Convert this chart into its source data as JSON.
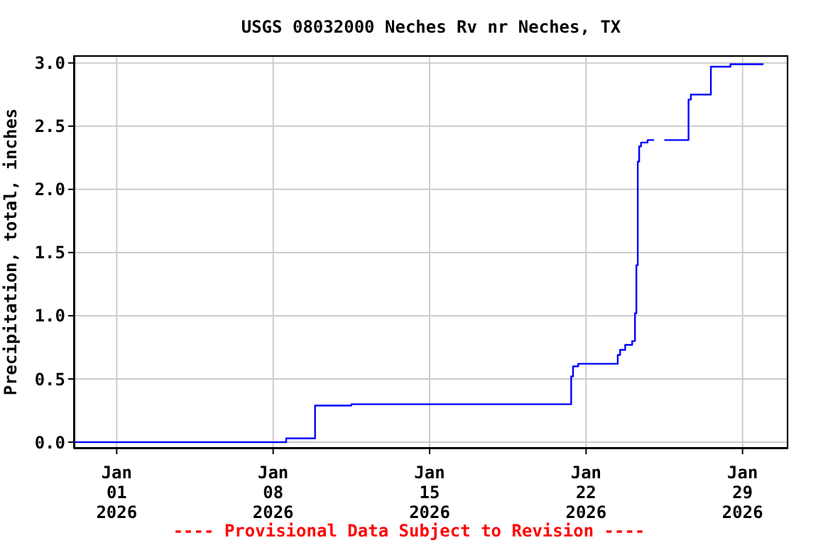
{
  "chart_data": {
    "type": "step",
    "title": "USGS 08032000 Neches Rv nr Neches, TX",
    "ylabel": "Precipitation, total, inches",
    "x": [
      "2025-12-30T02:00",
      "2026-01-08T14:00",
      "2026-01-09T21:00",
      "2026-01-11T12:00",
      "2026-01-21T08:00",
      "2026-01-21T10:00",
      "2026-01-21T15:30",
      "2026-01-23T10:00",
      "2026-01-23T12:30",
      "2026-01-23T18:00",
      "2026-01-24T01:30",
      "2026-01-24T04:30",
      "2026-01-24T06:00",
      "2026-01-24T07:30",
      "2026-01-24T09:00",
      "2026-01-24T11:00",
      "2026-01-24T18:00",
      "2026-01-25T01:00",
      "2026-01-25T02:00",
      "2026-01-25T12:00",
      "2026-01-26T14:00",
      "2026-01-26T16:30",
      "2026-01-27T14:00",
      "2026-01-28T11:00",
      "2026-01-29T22:30"
    ],
    "series": [
      {
        "color": "#0000ff",
        "values": [
          0,
          0.03,
          0.29,
          0.3,
          0.52,
          0.6,
          0.62,
          0.69,
          0.73,
          0.77,
          0.8,
          1.02,
          1.4,
          2.22,
          2.34,
          2.37,
          2.39,
          2.39,
          null,
          2.39,
          2.71,
          2.75,
          2.97,
          2.99,
          2.99
        ]
      }
    ],
    "xlim": [
      "2025-12-30T02:00",
      "2026-01-31T01:00"
    ],
    "xticks": [
      {
        "value": "2026-01-01",
        "label": "Jan\n01\n2026"
      },
      {
        "value": "2026-01-08",
        "label": "Jan\n08\n2026"
      },
      {
        "value": "2026-01-15",
        "label": "Jan\n15\n2026"
      },
      {
        "value": "2026-01-22",
        "label": "Jan\n22\n2026"
      },
      {
        "value": "2026-01-29",
        "label": "Jan\n29\n2026"
      }
    ],
    "ylim": [
      -0.05,
      3.06
    ],
    "yticks": [
      {
        "value": 0,
        "label": "0.0"
      },
      0.5,
      {
        "value": 1,
        "label": "1.0"
      },
      1.5,
      {
        "value": 2,
        "label": "2.0"
      },
      2.5,
      {
        "value": 3,
        "label": "3.0"
      }
    ],
    "grid": true,
    "line_style": "solid",
    "marker": "none",
    "annotations": [
      "---- Provisional Data Subject to Revision ----"
    ]
  }
}
